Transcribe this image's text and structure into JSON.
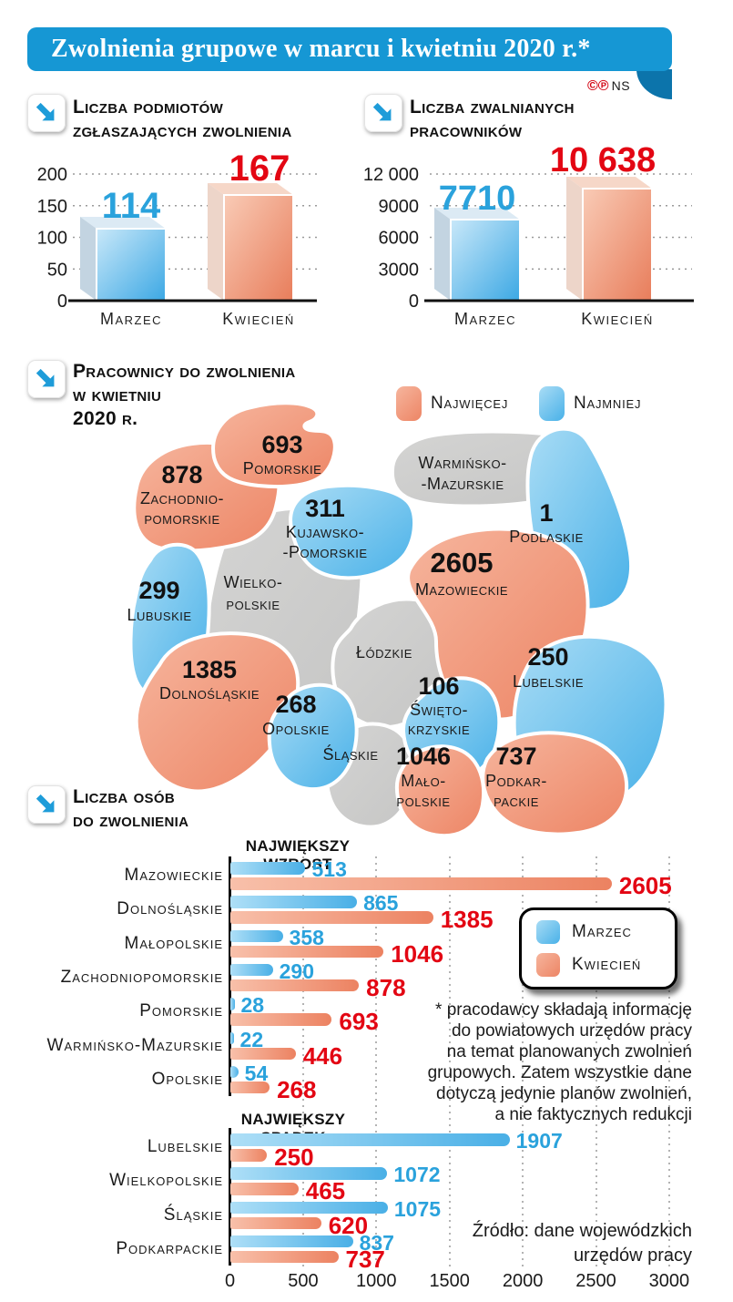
{
  "header": {
    "title": "Zwolnienia grupowe w marcu i kwietniu 2020 r.*",
    "marks": {
      "c": "©",
      "p": "℗",
      "ns": "NS"
    }
  },
  "map_section": {
    "title_lines": [
      "Pracownicy do zwolnienia",
      "w kwietniu",
      "2020 r."
    ]
  },
  "bottom_section": {
    "title_lines": [
      "Liczba osób",
      "do zwolnienia"
    ]
  },
  "footnote": {
    "lines": [
      "* pracodawcy składają informację",
      "do powiatowych urzędów pracy",
      "na temat planowanych zwolnień",
      "grupowych. Zatem wszystkie dane",
      "dotyczą jedynie planów zwolnień,",
      "a nie faktycznych redukcji"
    ]
  },
  "source": {
    "lines": [
      "Źródło: dane wojewódzkich",
      "urzędów pracy"
    ]
  },
  "colors": {
    "ribbon_blue": "#1697D4",
    "bar_blue": "#49AFE6",
    "bar_orange": "#EC8261",
    "value_blue": "#2AA2DC",
    "value_red": "#E30613",
    "region_gray": "#CDCDCC"
  },
  "chart_data": [
    {
      "type": "bar",
      "title": "Liczba podmiotów zgłaszających zwolnienia",
      "title_lines": [
        "Liczba podmiotów",
        "zgłaszających zwolnienia"
      ],
      "categories": [
        "Marzec",
        "Kwiecień"
      ],
      "values": [
        114,
        167
      ],
      "value_labels": [
        "114",
        "167"
      ],
      "ylim": [
        0,
        200
      ],
      "ytick_labels": [
        "0",
        "50",
        "100",
        "150",
        "200"
      ]
    },
    {
      "type": "bar",
      "title": "Liczba zwalnianych pracowników",
      "title_lines": [
        "Liczba zwalnianych",
        "pracowników"
      ],
      "categories": [
        "Marzec",
        "Kwiecień"
      ],
      "values": [
        7710,
        10638
      ],
      "value_labels": [
        "7710",
        "10 638"
      ],
      "ylim": [
        0,
        12000
      ],
      "ytick_labels": [
        "0",
        "3000",
        "6000",
        "9000",
        "12 000"
      ]
    },
    {
      "type": "heatmap",
      "subtype": "choropleth-map-poland",
      "title": "Pracownicy do zwolnienia w kwietniu 2020 r.",
      "legend": [
        {
          "label": "Najwięcej",
          "tier": "najwiecej"
        },
        {
          "label": "Najmniej",
          "tier": "najmniej"
        }
      ],
      "regions": [
        {
          "id": "pomorskie",
          "name_lines": [
            "Pomorskie"
          ],
          "value": 693,
          "tier": "najwiecej"
        },
        {
          "id": "zachodniopomorskie",
          "name_lines": [
            "Zachodnio-",
            "pomorskie"
          ],
          "value": 878,
          "tier": "najwiecej"
        },
        {
          "id": "warminsko-mazurskie",
          "name_lines": [
            "Warmińsko-",
            "-Mazurskie"
          ],
          "value": null,
          "tier": null
        },
        {
          "id": "kujawsko-pomorskie",
          "name_lines": [
            "Kujawsko-",
            "-Pomorskie"
          ],
          "value": 311,
          "tier": "najmniej"
        },
        {
          "id": "podlaskie",
          "name_lines": [
            "Podlaskie"
          ],
          "value": 1,
          "tier": "najmniej"
        },
        {
          "id": "mazowieckie",
          "name_lines": [
            "Mazowieckie"
          ],
          "value": 2605,
          "tier": "najwiecej"
        },
        {
          "id": "wielkopolskie",
          "name_lines": [
            "Wielko-",
            "polskie"
          ],
          "value": null,
          "tier": null
        },
        {
          "id": "lubuskie",
          "name_lines": [
            "Lubuskie"
          ],
          "value": 299,
          "tier": "najmniej"
        },
        {
          "id": "lodzkie",
          "name_lines": [
            "Łódzkie"
          ],
          "value": null,
          "tier": null
        },
        {
          "id": "lubelskie",
          "name_lines": [
            "Lubelskie"
          ],
          "value": 250,
          "tier": "najmniej"
        },
        {
          "id": "dolnoslaskie",
          "name_lines": [
            "Dolnośląskie"
          ],
          "value": 1385,
          "tier": "najwiecej"
        },
        {
          "id": "opolskie",
          "name_lines": [
            "Opolskie"
          ],
          "value": 268,
          "tier": "najmniej"
        },
        {
          "id": "slaskie",
          "name_lines": [
            "Śląskie"
          ],
          "value": null,
          "tier": null
        },
        {
          "id": "swietokrzyskie",
          "name_lines": [
            "Święto-",
            "krzyskie"
          ],
          "value": 106,
          "tier": "najmniej"
        },
        {
          "id": "malopolskie",
          "name_lines": [
            "Mało-",
            "polskie"
          ],
          "value": 1046,
          "tier": "najwiecej"
        },
        {
          "id": "podkarpackie",
          "name_lines": [
            "Podkar-",
            "packie"
          ],
          "value": 737,
          "tier": "najwiecej"
        }
      ]
    },
    {
      "type": "bar",
      "orientation": "horizontal",
      "title": "Liczba osób do zwolnienia",
      "series_names": [
        "Marzec",
        "Kwiecień"
      ],
      "xlim": [
        0,
        3000
      ],
      "xticks": [
        0,
        500,
        1000,
        1500,
        2000,
        2500,
        3000
      ],
      "sections": [
        {
          "label": "NAJWIĘKSZY WZROST",
          "rows": [
            {
              "category": "Mazowieckie",
              "marzec": 513,
              "kwiecien": 2605
            },
            {
              "category": "Dolnośląskie",
              "marzec": 865,
              "kwiecien": 1385
            },
            {
              "category": "Małopolskie",
              "marzec": 358,
              "kwiecien": 1046
            },
            {
              "category": "Zachodniopomorskie",
              "marzec": 290,
              "kwiecien": 878
            },
            {
              "category": "Pomorskie",
              "marzec": 28,
              "kwiecien": 693
            },
            {
              "category": "Warmińsko-Mazurskie",
              "marzec": 22,
              "kwiecien": 446
            },
            {
              "category": "Opolskie",
              "marzec": 54,
              "kwiecien": 268
            }
          ]
        },
        {
          "label": "NAJWIĘKSZY SPADEK",
          "rows": [
            {
              "category": "Lubelskie",
              "marzec": 1907,
              "kwiecien": 250
            },
            {
              "category": "Wielkopolskie",
              "marzec": 1072,
              "kwiecien": 465
            },
            {
              "category": "Śląskie",
              "marzec": 1075,
              "kwiecien": 620
            },
            {
              "category": "Podkarpackie",
              "marzec": 837,
              "kwiecien": 737
            }
          ]
        }
      ]
    }
  ]
}
